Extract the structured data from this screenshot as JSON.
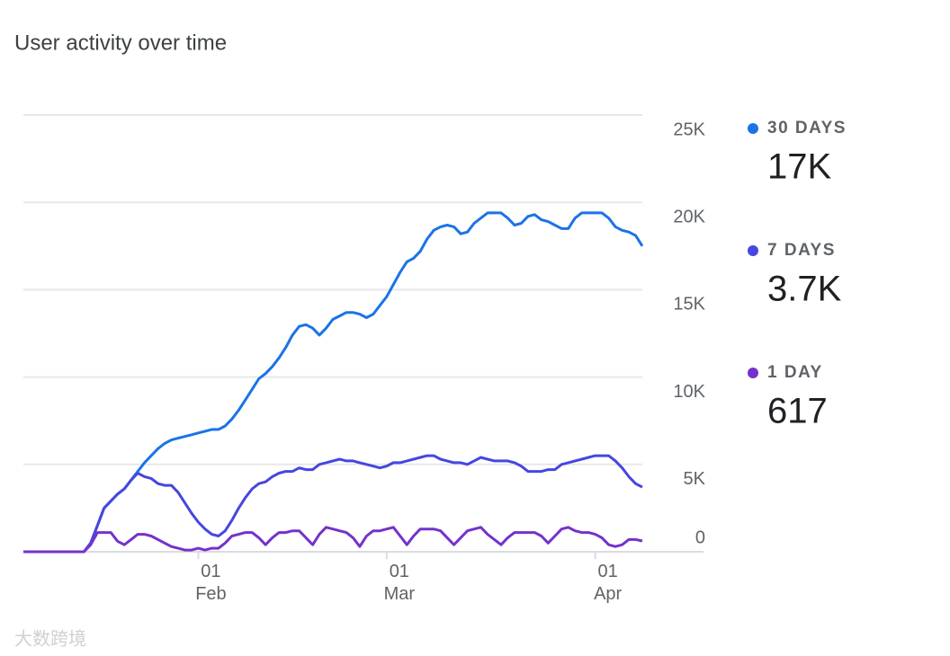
{
  "chart_data": {
    "type": "line",
    "title": "User activity over time",
    "categories": [
      null,
      null,
      null,
      null,
      null,
      null,
      null,
      null,
      null,
      null,
      null,
      null,
      null,
      null,
      null,
      null,
      null,
      null,
      null,
      null,
      null,
      null,
      null,
      null,
      null,
      null,
      "01 Feb",
      null,
      null,
      null,
      null,
      null,
      null,
      null,
      null,
      null,
      null,
      null,
      null,
      null,
      null,
      null,
      null,
      null,
      null,
      null,
      null,
      null,
      null,
      null,
      null,
      null,
      null,
      null,
      "01 Mar",
      null,
      null,
      null,
      null,
      null,
      null,
      null,
      null,
      null,
      null,
      null,
      null,
      null,
      null,
      null,
      null,
      null,
      null,
      null,
      null,
      null,
      null,
      null,
      null,
      null,
      null,
      null,
      null,
      null,
      null,
      "01 Apr",
      null,
      null,
      null,
      null,
      null,
      null,
      null
    ],
    "series": [
      {
        "name": "30 DAYS",
        "total": "17K",
        "color": "#1a73e8",
        "values": [
          0,
          0,
          0,
          0,
          0,
          0,
          0,
          0,
          0,
          0,
          500,
          1500,
          2500,
          2900,
          3300,
          3600,
          4100,
          4600,
          5100,
          5500,
          5900,
          6200,
          6400,
          6500,
          6600,
          6700,
          6800,
          6900,
          7000,
          7000,
          7200,
          7600,
          8100,
          8700,
          9300,
          9900,
          10200,
          10600,
          11100,
          11700,
          12400,
          12900,
          13000,
          12800,
          12400,
          12800,
          13300,
          13500,
          13700,
          13700,
          13600,
          13400,
          13600,
          14100,
          14600,
          15300,
          16000,
          16600,
          16800,
          17200,
          17900,
          18400,
          18600,
          18700,
          18600,
          18200,
          18300,
          18800,
          19100,
          19400,
          19400,
          19400,
          19100,
          18700,
          18800,
          19200,
          19300,
          19000,
          18900,
          18700,
          18500,
          18500,
          19100,
          19400,
          19400,
          19400,
          19400,
          19100,
          18600,
          18400,
          18300,
          18100,
          17500
        ]
      },
      {
        "name": "7 DAYS",
        "total": "3.7K",
        "color": "#4646e0",
        "values": [
          0,
          0,
          0,
          0,
          0,
          0,
          0,
          0,
          0,
          0,
          500,
          1500,
          2500,
          2900,
          3300,
          3600,
          4100,
          4500,
          4300,
          4200,
          3900,
          3800,
          3800,
          3400,
          2800,
          2200,
          1700,
          1300,
          1000,
          900,
          1200,
          1800,
          2500,
          3100,
          3600,
          3900,
          4000,
          4300,
          4500,
          4600,
          4600,
          4800,
          4700,
          4700,
          5000,
          5100,
          5200,
          5300,
          5200,
          5200,
          5100,
          5000,
          4900,
          4800,
          4900,
          5100,
          5100,
          5200,
          5300,
          5400,
          5500,
          5500,
          5300,
          5200,
          5100,
          5100,
          5000,
          5200,
          5400,
          5300,
          5200,
          5200,
          5200,
          5100,
          4900,
          4600,
          4600,
          4600,
          4700,
          4700,
          5000,
          5100,
          5200,
          5300,
          5400,
          5500,
          5500,
          5500,
          5200,
          4800,
          4300,
          3900,
          3700
        ]
      },
      {
        "name": "1 DAY",
        "total": "617",
        "color": "#7432cc",
        "values": [
          0,
          0,
          0,
          0,
          0,
          0,
          0,
          0,
          0,
          0,
          400,
          1100,
          1100,
          1100,
          600,
          400,
          700,
          1000,
          1000,
          900,
          700,
          500,
          300,
          200,
          100,
          100,
          200,
          100,
          200,
          200,
          500,
          900,
          1000,
          1100,
          1100,
          800,
          400,
          800,
          1100,
          1100,
          1200,
          1200,
          800,
          400,
          1000,
          1400,
          1300,
          1200,
          1100,
          800,
          300,
          900,
          1200,
          1200,
          1300,
          1400,
          900,
          400,
          900,
          1300,
          1300,
          1300,
          1200,
          800,
          400,
          800,
          1200,
          1300,
          1400,
          1000,
          700,
          400,
          800,
          1100,
          1100,
          1100,
          1100,
          900,
          500,
          900,
          1300,
          1400,
          1200,
          1100,
          1100,
          1000,
          800,
          400,
          300,
          400,
          700,
          700,
          617
        ]
      }
    ],
    "ylim": [
      0,
      25000
    ],
    "yticks": [
      0,
      {
        "value": 5000,
        "label": "5K"
      },
      {
        "value": 10000,
        "label": "10K"
      },
      {
        "value": 15000,
        "label": "15K"
      },
      {
        "value": 20000,
        "label": "20K"
      },
      {
        "value": 25000,
        "label": "25K"
      }
    ],
    "grid": true,
    "legend": "right",
    "watermark": "大数跨境"
  }
}
